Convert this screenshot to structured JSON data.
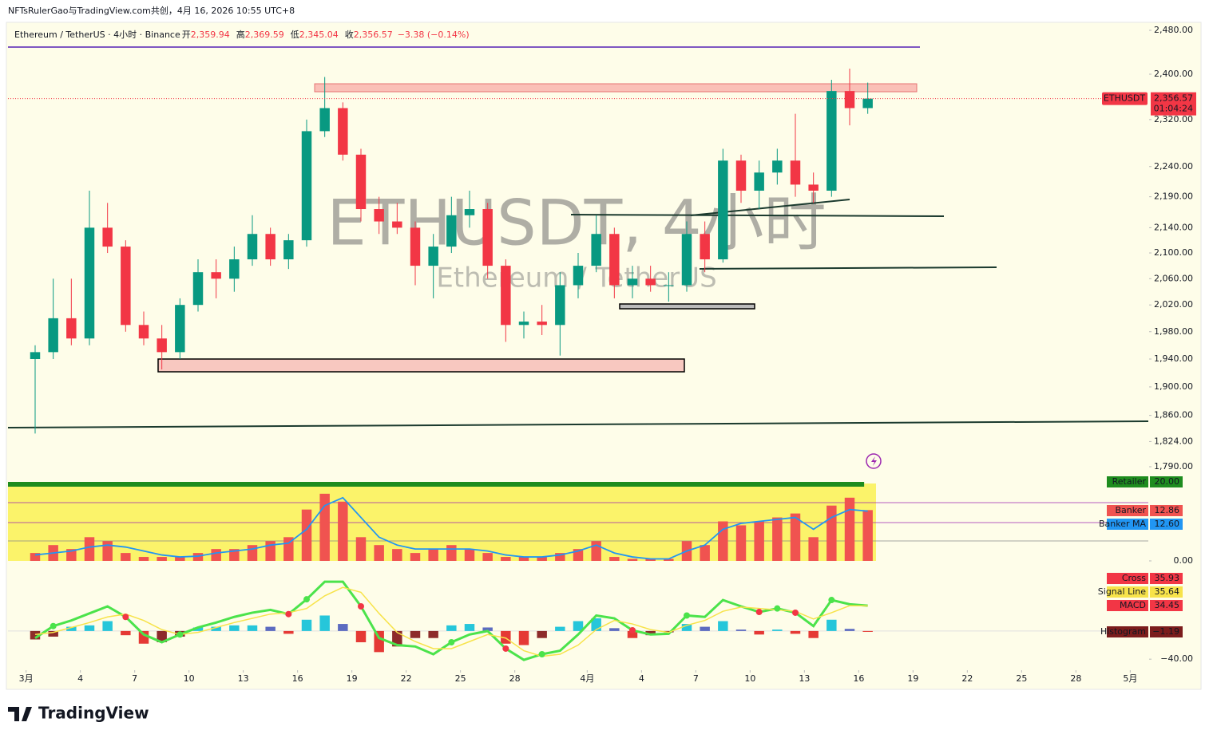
{
  "header": {
    "attribution": "NFTsRulerGao与TradingView.com共创，4月 16, 2026 10:55 UTC+8"
  },
  "legend": {
    "symbol": "Ethereum / TetherUS · 4小时 · Binance",
    "fields": [
      {
        "name": "开",
        "value": "2,359.94"
      },
      {
        "name": "高",
        "value": "2,369.59"
      },
      {
        "name": "低",
        "value": "2,345.04"
      },
      {
        "name": "收",
        "value": "2,356.57"
      }
    ],
    "change": "−3.38 (−0.14%)"
  },
  "footer": {
    "brand": "TradingView"
  },
  "chart_data": [
    {
      "type": "candlestick",
      "watermark": "ETHUSDT, 4小时",
      "watermark_sub": "Ethereum / TetherUS",
      "log_scale": true,
      "up_color": "#089981",
      "down_color": "#f23645",
      "symbol_tag": "ETHUSDT",
      "last_price": {
        "value": 2356.57,
        "label": "2,356.57"
      },
      "countdown": "01:04:24",
      "xlim": [
        "2026-02-28",
        "2026-05-02"
      ],
      "xticks": [
        {
          "value": "2026-03-01",
          "label": "3月"
        },
        {
          "value": "2026-03-04",
          "label": "4"
        },
        {
          "value": "2026-03-07",
          "label": "7"
        },
        {
          "value": "2026-03-10",
          "label": "10"
        },
        {
          "value": "2026-03-13",
          "label": "13"
        },
        {
          "value": "2026-03-16",
          "label": "16"
        },
        {
          "value": "2026-03-19",
          "label": "19"
        },
        {
          "value": "2026-03-22",
          "label": "22"
        },
        {
          "value": "2026-03-25",
          "label": "25"
        },
        {
          "value": "2026-03-28",
          "label": "28"
        },
        {
          "value": "2026-04-01",
          "label": "4月"
        },
        {
          "value": "2026-04-04",
          "label": "4"
        },
        {
          "value": "2026-04-07",
          "label": "7"
        },
        {
          "value": "2026-04-10",
          "label": "10"
        },
        {
          "value": "2026-04-13",
          "label": "13"
        },
        {
          "value": "2026-04-16",
          "label": "16"
        },
        {
          "value": "2026-04-19",
          "label": "19"
        },
        {
          "value": "2026-04-22",
          "label": "22"
        },
        {
          "value": "2026-04-25",
          "label": "25"
        },
        {
          "value": "2026-04-28",
          "label": "28"
        },
        {
          "value": "2026-05-01",
          "label": "5月"
        }
      ],
      "ylim": [
        1790,
        2480
      ],
      "yticks": [
        {
          "value": 2480,
          "label": "2,480.00"
        },
        {
          "value": 2400,
          "label": "2,400.00"
        },
        {
          "value": 2320,
          "label": "2,320.00"
        },
        {
          "value": 2240,
          "label": "2,240.00"
        },
        {
          "value": 2190,
          "label": "2,190.00"
        },
        {
          "value": 2140,
          "label": "2,140.00"
        },
        {
          "value": 2100,
          "label": "2,100.00"
        },
        {
          "value": 2060,
          "label": "2,060.00"
        },
        {
          "value": 2020,
          "label": "2,020.00"
        },
        {
          "value": 1980,
          "label": "1,980.00"
        },
        {
          "value": 1940,
          "label": "1,940.00"
        },
        {
          "value": 1900,
          "label": "1,900.00"
        },
        {
          "value": 1860,
          "label": "1,860.00"
        },
        {
          "value": 1824,
          "label": "1,824.00"
        },
        {
          "value": 1790,
          "label": "1,790.00"
        }
      ],
      "x": [
        "2026-03-01",
        "2026-03-02",
        "2026-03-03",
        "2026-03-04",
        "2026-03-05",
        "2026-03-06",
        "2026-03-07",
        "2026-03-08",
        "2026-03-09",
        "2026-03-10",
        "2026-03-11",
        "2026-03-12",
        "2026-03-13",
        "2026-03-14",
        "2026-03-15",
        "2026-03-16",
        "2026-03-17",
        "2026-03-18",
        "2026-03-19",
        "2026-03-20",
        "2026-03-21",
        "2026-03-22",
        "2026-03-23",
        "2026-03-24",
        "2026-03-25",
        "2026-03-26",
        "2026-03-27",
        "2026-03-28",
        "2026-03-29",
        "2026-03-30",
        "2026-03-31",
        "2026-04-01",
        "2026-04-02",
        "2026-04-03",
        "2026-04-04",
        "2026-04-05",
        "2026-04-06",
        "2026-04-07",
        "2026-04-08",
        "2026-04-09",
        "2026-04-10",
        "2026-04-11",
        "2026-04-12",
        "2026-04-13",
        "2026-04-14",
        "2026-04-15",
        "2026-04-16"
      ],
      "open": [
        1940,
        1950,
        2000,
        1970,
        2140,
        2110,
        1990,
        1970,
        1950,
        2020,
        2070,
        2060,
        2090,
        2130,
        2090,
        2120,
        2300,
        2340,
        2260,
        2170,
        2150,
        2140,
        2080,
        2110,
        2160,
        2170,
        2080,
        1990,
        1995,
        1990,
        2050,
        2080,
        2130,
        2050,
        2060,
        2050,
        2050,
        2130,
        2090,
        2250,
        2200,
        2230,
        2250,
        2210,
        2200,
        2370,
        2340
      ],
      "high": [
        1960,
        2060,
        2060,
        2200,
        2180,
        2120,
        2010,
        1990,
        2030,
        2090,
        2090,
        2110,
        2160,
        2140,
        2130,
        2320,
        2395,
        2350,
        2270,
        2190,
        2180,
        2150,
        2130,
        2190,
        2200,
        2180,
        2090,
        2010,
        2020,
        2070,
        2100,
        2160,
        2140,
        2080,
        2080,
        2070,
        2150,
        2150,
        2270,
        2260,
        2250,
        2270,
        2330,
        2230,
        2390,
        2410,
        2385
      ],
      "low": [
        1835,
        1940,
        1960,
        1960,
        2100,
        1980,
        1960,
        1925,
        1940,
        2010,
        2030,
        2040,
        2080,
        2080,
        2075,
        2110,
        2290,
        2250,
        2150,
        2130,
        2130,
        2050,
        2030,
        2100,
        2140,
        2060,
        1965,
        1970,
        1975,
        1945,
        2030,
        2070,
        2030,
        2030,
        2040,
        2025,
        2040,
        2070,
        2085,
        2180,
        2170,
        2210,
        2190,
        2180,
        2190,
        2310,
        2330
      ],
      "close": [
        1950,
        2000,
        1970,
        2140,
        2110,
        1990,
        1970,
        1950,
        2020,
        2070,
        2060,
        2090,
        2130,
        2090,
        2120,
        2300,
        2340,
        2260,
        2170,
        2150,
        2140,
        2080,
        2110,
        2160,
        2170,
        2080,
        1990,
        1995,
        1990,
        2050,
        2080,
        2130,
        2050,
        2060,
        2050,
        2050,
        2130,
        2090,
        2250,
        2200,
        2230,
        2250,
        2210,
        2200,
        2370,
        2340,
        2356.57
      ]
    },
    {
      "type": "indicator",
      "xlim": [
        "2026-02-28",
        "2026-05-02"
      ],
      "ylim": [
        0,
        20
      ],
      "yticks": [
        {
          "value": 0,
          "label": "0.00"
        }
      ],
      "x": [
        "2026-03-01",
        "2026-03-02",
        "2026-03-03",
        "2026-03-04",
        "2026-03-05",
        "2026-03-06",
        "2026-03-07",
        "2026-03-08",
        "2026-03-09",
        "2026-03-10",
        "2026-03-11",
        "2026-03-12",
        "2026-03-13",
        "2026-03-14",
        "2026-03-15",
        "2026-03-16",
        "2026-03-17",
        "2026-03-18",
        "2026-03-19",
        "2026-03-20",
        "2026-03-21",
        "2026-03-22",
        "2026-03-23",
        "2026-03-24",
        "2026-03-25",
        "2026-03-26",
        "2026-03-27",
        "2026-03-28",
        "2026-03-29",
        "2026-03-30",
        "2026-03-31",
        "2026-04-01",
        "2026-04-02",
        "2026-04-03",
        "2026-04-04",
        "2026-04-05",
        "2026-04-06",
        "2026-04-07",
        "2026-04-08",
        "2026-04-09",
        "2026-04-10",
        "2026-04-11",
        "2026-04-12",
        "2026-04-13",
        "2026-04-14",
        "2026-04-15",
        "2026-04-16"
      ],
      "series": [
        {
          "name": "Retailer",
          "kind": "level",
          "color": "#1e8c1e",
          "value": 20,
          "label": "20.00"
        },
        {
          "name": "Banker",
          "kind": "bar",
          "color": "#f05350",
          "label": "12.86",
          "values": [
            2,
            4,
            3,
            6,
            5,
            2,
            1,
            1,
            1,
            2,
            3,
            3,
            4,
            5,
            6,
            13,
            17,
            15,
            6,
            4,
            3,
            2,
            3,
            4,
            3,
            2,
            1,
            1,
            1,
            2,
            3,
            5,
            1,
            0.5,
            0.5,
            0.5,
            5,
            4,
            10,
            9,
            10,
            11,
            12,
            6,
            14,
            16,
            12.86
          ]
        },
        {
          "name": "Banker MA",
          "kind": "line",
          "color": "#2196f3",
          "label": "12.60",
          "values": [
            1.5,
            2,
            2.5,
            3.5,
            4,
            3.5,
            2.5,
            1.5,
            1,
            1.2,
            2,
            2.5,
            3,
            4,
            4.5,
            8,
            14,
            16,
            11,
            6,
            4,
            3,
            3,
            3,
            3,
            2.5,
            1.5,
            1,
            1,
            1.5,
            2.5,
            4,
            2,
            1,
            0.5,
            0.5,
            2.5,
            4,
            8,
            9.5,
            10,
            10.5,
            11,
            8,
            11,
            13,
            12.6
          ]
        }
      ]
    },
    {
      "type": "macd",
      "xlim": [
        "2026-02-28",
        "2026-05-02"
      ],
      "ylim": [
        -50,
        86
      ],
      "yticks": [
        {
          "value": -40,
          "label": "−40.00"
        }
      ],
      "x": [
        "2026-03-01",
        "2026-03-02",
        "2026-03-03",
        "2026-03-04",
        "2026-03-05",
        "2026-03-06",
        "2026-03-07",
        "2026-03-08",
        "2026-03-09",
        "2026-03-10",
        "2026-03-11",
        "2026-03-12",
        "2026-03-13",
        "2026-03-14",
        "2026-03-15",
        "2026-03-16",
        "2026-03-17",
        "2026-03-18",
        "2026-03-19",
        "2026-03-20",
        "2026-03-21",
        "2026-03-22",
        "2026-03-23",
        "2026-03-24",
        "2026-03-25",
        "2026-03-26",
        "2026-03-27",
        "2026-03-28",
        "2026-03-29",
        "2026-03-30",
        "2026-03-31",
        "2026-04-01",
        "2026-04-02",
        "2026-04-03",
        "2026-04-04",
        "2026-04-05",
        "2026-04-06",
        "2026-04-07",
        "2026-04-08",
        "2026-04-09",
        "2026-04-10",
        "2026-04-11",
        "2026-04-12",
        "2026-04-13",
        "2026-04-14",
        "2026-04-15",
        "2026-04-16"
      ],
      "series": [
        {
          "name": "Cross",
          "kind": "line",
          "color": "#4be34b",
          "label_color": "#f23645",
          "label": "35.93",
          "values": [
            -10,
            7,
            15,
            25,
            35,
            20,
            -5,
            -16,
            -5,
            5,
            12,
            20,
            26,
            30,
            24,
            45,
            70,
            70,
            35,
            -10,
            -20,
            -22,
            -33,
            -16,
            -5,
            0,
            -25,
            -41,
            -33,
            -28,
            -5,
            22,
            18,
            1,
            -5,
            -4,
            22,
            20,
            44,
            35,
            27,
            32,
            26,
            7,
            44,
            38,
            35.93
          ]
        },
        {
          "name": "Signal Line",
          "kind": "line",
          "color": "#f7e34a",
          "label_text_color": "#131722",
          "label": "35.64",
          "values": [
            -5,
            -2,
            5,
            12,
            20,
            24,
            15,
            2,
            -5,
            -2,
            5,
            12,
            18,
            24,
            26,
            32,
            50,
            62,
            55,
            25,
            -2,
            -15,
            -25,
            -25,
            -15,
            -5,
            -10,
            -28,
            -36,
            -33,
            -20,
            2,
            15,
            10,
            2,
            -2,
            8,
            15,
            28,
            34,
            32,
            30,
            28,
            17,
            26,
            36,
            35.64
          ]
        },
        {
          "name": "MACD",
          "kind": "value",
          "color": "#f23645",
          "value": 34.45,
          "label": "34.45"
        },
        {
          "name": "Histogram",
          "kind": "histogram",
          "color": "#7b1c1c",
          "colors": [
            "#26c6da",
            "#5c6bc0",
            "#8d2b2b",
            "#e53935"
          ],
          "label": "−1.19",
          "values": [
            -12,
            -8,
            6,
            8,
            14,
            -6,
            -18,
            -16,
            -8,
            5,
            6,
            8,
            8,
            6,
            -4,
            16,
            22,
            10,
            -16,
            -30,
            -22,
            -10,
            -10,
            8,
            10,
            5,
            -18,
            -20,
            -10,
            6,
            14,
            18,
            4,
            -10,
            -6,
            -2,
            10,
            6,
            14,
            2,
            -5,
            2,
            -4,
            -10,
            16,
            3,
            -1.19
          ]
        }
      ]
    }
  ]
}
